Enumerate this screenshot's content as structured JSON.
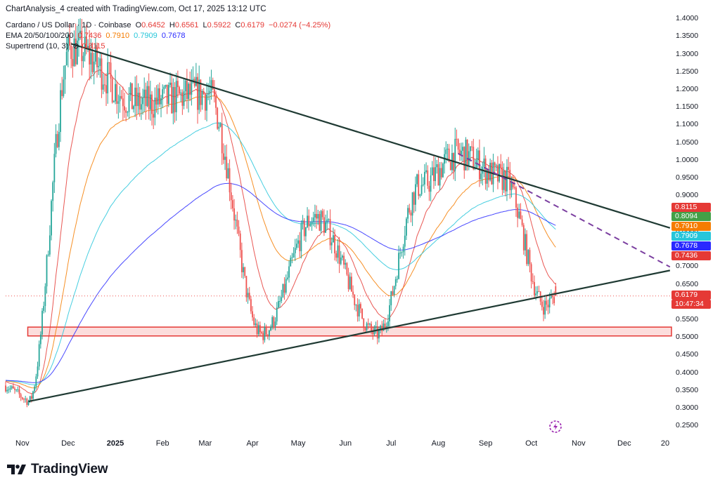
{
  "header": {
    "attribution": "ChartAnalysis_4 created with TradingView.com, Oct 17, 2025 13:12 UTC",
    "symbol": "Cardano / US Dollar · 1D · Coinbase",
    "open_label": "O",
    "open": "0.6452",
    "high_label": "H",
    "high": "0.6561",
    "low_label": "L",
    "low": "0.5922",
    "close_label": "C",
    "close": "0.6179",
    "change": "−0.0274 (−4.25%)",
    "ema_label": "EMA 20/50/100/200",
    "ema20": "0.7436",
    "ema50": "0.7910",
    "ema100": "0.7909",
    "ema200": "0.7678",
    "supertrend_label": "Supertrend (10, 3)",
    "supertrend_value": "0.8115"
  },
  "price_tags": [
    {
      "text": "0.8115",
      "value": 0.8115,
      "color": "#e53935"
    },
    {
      "text": "0.8094",
      "value": 0.8094,
      "color": "#43a047"
    },
    {
      "text": "0.7910",
      "value": 0.791,
      "color": "#f57c00"
    },
    {
      "text": "0.7909",
      "value": 0.7909,
      "color": "#26c6da"
    },
    {
      "text": "0.7678",
      "value": 0.7678,
      "color": "#2929ff"
    },
    {
      "text": "0.7436",
      "value": 0.7436,
      "color": "#e53935"
    },
    {
      "text": "0.6179",
      "value": 0.6179,
      "color": "#e53935"
    },
    {
      "text": "10:47:34",
      "value": 0.6179,
      "color": "#e53935"
    }
  ],
  "logo_text": "TradingView",
  "chart_data": {
    "type": "candlestick",
    "y_axis_ticks": [
      "1.4000",
      "1.3500",
      "1.3000",
      "1.2500",
      "1.2000",
      "1.1500",
      "1.1000",
      "1.0500",
      "1.0000",
      "0.9500",
      "0.9000",
      "0.8500",
      "0.8000",
      "0.7500",
      "0.7000",
      "0.6500",
      "0.6000",
      "0.5500",
      "0.5000",
      "0.4500",
      "0.4000",
      "0.3500",
      "0.3000",
      "0.2500"
    ],
    "ylim": [
      0.235,
      1.41
    ],
    "x_axis_ticks": [
      "Nov",
      "Dec",
      "2025",
      "Feb",
      "Mar",
      "Apr",
      "May",
      "Jun",
      "Jul",
      "Aug",
      "Sep",
      "Oct",
      "Nov",
      "Dec",
      "20"
    ],
    "key_prices": [
      {
        "date": "2024-11-05",
        "price": 0.32
      },
      {
        "date": "2024-12-03",
        "price": 1.32
      },
      {
        "date": "2025-01-17",
        "price": 1.16
      },
      {
        "date": "2025-03-02",
        "price": 1.19
      },
      {
        "date": "2025-04-07",
        "price": 0.51
      },
      {
        "date": "2025-05-12",
        "price": 0.84
      },
      {
        "date": "2025-06-22",
        "price": 0.51
      },
      {
        "date": "2025-07-20",
        "price": 0.93
      },
      {
        "date": "2025-08-14",
        "price": 1.02
      },
      {
        "date": "2025-09-13",
        "price": 0.95
      },
      {
        "date": "2025-10-10",
        "price": 0.59
      },
      {
        "date": "2025-10-17",
        "price": 0.6179
      }
    ],
    "overlays": {
      "upper_trendline": {
        "from": [
          "2024-12-03",
          1.33
        ],
        "to": [
          "2025-12-31",
          0.81
        ]
      },
      "lower_trendline": {
        "from": [
          "2024-11-05",
          0.32
        ],
        "to": [
          "2025-12-31",
          0.69
        ]
      },
      "dashed_trendline": {
        "from": [
          "2025-08-14",
          1.02
        ],
        "to": [
          "2025-12-31",
          0.7
        ]
      },
      "support_zone": {
        "from_date": "2024-11-05",
        "to_date": "2025-12-31",
        "low": 0.505,
        "high": 0.53
      }
    },
    "current_price": 0.6179
  }
}
